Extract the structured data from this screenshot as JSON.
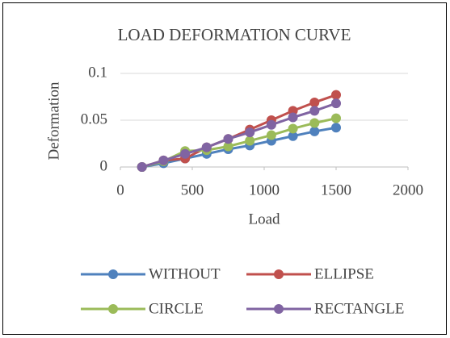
{
  "chart_data": {
    "type": "line",
    "title": "LOAD DEFORMATION CURVE",
    "xlabel": "Load",
    "ylabel": "Deformation",
    "x": [
      150,
      300,
      450,
      600,
      750,
      900,
      1050,
      1200,
      1350,
      1500
    ],
    "series": [
      {
        "name": "WITHOUT",
        "color": "#4f81bd",
        "values": [
          0,
          0.004,
          0.009,
          0.014,
          0.019,
          0.023,
          0.028,
          0.033,
          0.038,
          0.042
        ]
      },
      {
        "name": "ELLIPSE",
        "color": "#c0504d",
        "values": [
          0,
          0.007,
          0.009,
          0.021,
          0.03,
          0.04,
          0.05,
          0.06,
          0.069,
          0.077
        ]
      },
      {
        "name": "CIRCLE",
        "color": "#9bbb59",
        "values": [
          0,
          0.006,
          0.017,
          0.018,
          0.022,
          0.028,
          0.034,
          0.041,
          0.047,
          0.052
        ]
      },
      {
        "name": "RECTANGLE",
        "color": "#8064a2",
        "values": [
          0,
          0.007,
          0.014,
          0.021,
          0.03,
          0.037,
          0.045,
          0.053,
          0.06,
          0.068
        ]
      }
    ],
    "xlim": [
      0,
      2000
    ],
    "xticks": [
      0,
      500,
      1000,
      1500,
      2000
    ],
    "ylim": [
      0,
      0.1
    ],
    "yticks": [
      0,
      0.05,
      0.1
    ],
    "grid": true,
    "legend": "bottom"
  }
}
